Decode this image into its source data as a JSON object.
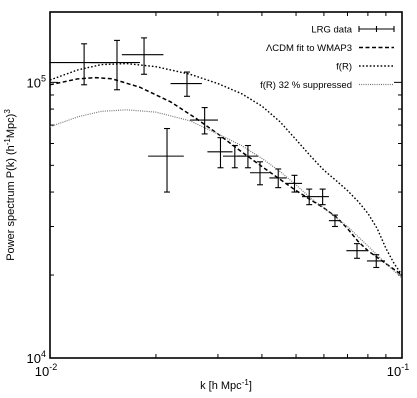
{
  "chart_data": {
    "type": "line",
    "xlabel": {
      "main": "k [h Mpc",
      "sup": "-1",
      "tail": "]"
    },
    "ylabel": {
      "main": "Power spectrum P(k) (h",
      "sup1": "-1",
      "mid": "Mpc)",
      "sup2": "3"
    },
    "x_scale": "log",
    "y_scale": "log",
    "xlim": [
      0.01,
      0.1
    ],
    "ylim": [
      10000,
      180000
    ],
    "x_ticks": [
      {
        "value": 0.01,
        "base": "10",
        "exp": "-2"
      },
      {
        "value": 0.1,
        "base": "10",
        "exp": "-1"
      }
    ],
    "y_ticks": [
      {
        "value": 10000,
        "base": "10",
        "exp": "4"
      },
      {
        "value": 100000,
        "base": "10",
        "exp": "5"
      }
    ],
    "legend": {
      "position": "top-right"
    },
    "series": [
      {
        "name": "LRG data",
        "kind": "errorbar",
        "color": "#000000",
        "points": [
          {
            "x": 0.0125,
            "y": 118000,
            "xerr": [
              0.0025,
              0.0025
            ],
            "yerr": [
              20000,
              20000
            ]
          },
          {
            "x": 0.0155,
            "y": 118000,
            "xerr": [
              0.0025,
              0.0025
            ],
            "yerr": [
              24000,
              24000
            ]
          },
          {
            "x": 0.0185,
            "y": 126000,
            "xerr": [
              0.0025,
              0.0025
            ],
            "yerr": [
              19000,
              19000
            ]
          },
          {
            "x": 0.0215,
            "y": 54000,
            "xerr": [
              0.0025,
              0.0025
            ],
            "yerr": [
              14000,
              14000
            ]
          },
          {
            "x": 0.0245,
            "y": 99000,
            "xerr": [
              0.0025,
              0.0025
            ],
            "yerr": [
              10000,
              10000
            ]
          },
          {
            "x": 0.0275,
            "y": 73000,
            "xerr": [
              0.0025,
              0.0025
            ],
            "yerr": [
              8000,
              8000
            ]
          },
          {
            "x": 0.0305,
            "y": 56000,
            "xerr": [
              0.0025,
              0.0025
            ],
            "yerr": [
              7000,
              7000
            ]
          },
          {
            "x": 0.0335,
            "y": 54000,
            "xerr": [
              0.0025,
              0.0025
            ],
            "yerr": [
              5000,
              5000
            ]
          },
          {
            "x": 0.0365,
            "y": 54000,
            "xerr": [
              0.0025,
              0.0025
            ],
            "yerr": [
              5000,
              5000
            ]
          },
          {
            "x": 0.0395,
            "y": 47000,
            "xerr": [
              0.0025,
              0.0025
            ],
            "yerr": [
              4500,
              4500
            ]
          },
          {
            "x": 0.0445,
            "y": 45000,
            "xerr": [
              0.0025,
              0.0025
            ],
            "yerr": [
              3500,
              3500
            ]
          },
          {
            "x": 0.0495,
            "y": 43000,
            "xerr": [
              0.0025,
              0.0025
            ],
            "yerr": [
              3000,
              3000
            ]
          },
          {
            "x": 0.0545,
            "y": 38500,
            "xerr": [
              0.0025,
              0.0025
            ],
            "yerr": [
              2500,
              2500
            ]
          },
          {
            "x": 0.0595,
            "y": 38500,
            "xerr": [
              0.0025,
              0.0025
            ],
            "yerr": [
              2500,
              2500
            ]
          },
          {
            "x": 0.0645,
            "y": 31500,
            "xerr": [
              0.0025,
              0.0025
            ],
            "yerr": [
              1500,
              1500
            ]
          },
          {
            "x": 0.0745,
            "y": 24500,
            "xerr": [
              0.005,
              0.005
            ],
            "yerr": [
              1500,
              1500
            ]
          },
          {
            "x": 0.0845,
            "y": 22500,
            "xerr": [
              0.005,
              0.005
            ],
            "yerr": [
              1200,
              1200
            ]
          }
        ]
      },
      {
        "name": "ΛCDM fit to WMAP3",
        "kind": "line",
        "dash": "dashed",
        "color": "#000000",
        "points": [
          {
            "x": 0.01,
            "y": 98000
          },
          {
            "x": 0.012,
            "y": 103000
          },
          {
            "x": 0.0135,
            "y": 104000
          },
          {
            "x": 0.015,
            "y": 103000
          },
          {
            "x": 0.018,
            "y": 96000
          },
          {
            "x": 0.022,
            "y": 85000
          },
          {
            "x": 0.026,
            "y": 74000
          },
          {
            "x": 0.03,
            "y": 65000
          },
          {
            "x": 0.035,
            "y": 56000
          },
          {
            "x": 0.04,
            "y": 49500
          },
          {
            "x": 0.045,
            "y": 44500
          },
          {
            "x": 0.05,
            "y": 40500
          },
          {
            "x": 0.055,
            "y": 37500
          },
          {
            "x": 0.06,
            "y": 35000
          },
          {
            "x": 0.065,
            "y": 32500
          },
          {
            "x": 0.07,
            "y": 29500
          },
          {
            "x": 0.075,
            "y": 26500
          },
          {
            "x": 0.08,
            "y": 24500
          },
          {
            "x": 0.09,
            "y": 22000
          },
          {
            "x": 0.1,
            "y": 20000
          }
        ]
      },
      {
        "name": "f(R)",
        "kind": "line",
        "dash": "dotted",
        "color": "#000000",
        "points": [
          {
            "x": 0.01,
            "y": 102000
          },
          {
            "x": 0.012,
            "y": 111000
          },
          {
            "x": 0.014,
            "y": 116000
          },
          {
            "x": 0.0165,
            "y": 117000
          },
          {
            "x": 0.02,
            "y": 114000
          },
          {
            "x": 0.025,
            "y": 107000
          },
          {
            "x": 0.03,
            "y": 99000
          },
          {
            "x": 0.035,
            "y": 91000
          },
          {
            "x": 0.04,
            "y": 82000
          },
          {
            "x": 0.045,
            "y": 72000
          },
          {
            "x": 0.05,
            "y": 62000
          },
          {
            "x": 0.055,
            "y": 54000
          },
          {
            "x": 0.06,
            "y": 48000
          },
          {
            "x": 0.065,
            "y": 44000
          },
          {
            "x": 0.07,
            "y": 40500
          },
          {
            "x": 0.075,
            "y": 37000
          },
          {
            "x": 0.08,
            "y": 33500
          },
          {
            "x": 0.085,
            "y": 29500
          },
          {
            "x": 0.09,
            "y": 25000
          },
          {
            "x": 0.095,
            "y": 22000
          },
          {
            "x": 0.1,
            "y": 20000
          }
        ]
      },
      {
        "name": "f(R) 32 % suppressed",
        "kind": "line",
        "dash": "fine-dotted",
        "color": "#777777",
        "points": [
          {
            "x": 0.01,
            "y": 69000
          },
          {
            "x": 0.012,
            "y": 75000
          },
          {
            "x": 0.014,
            "y": 78500
          },
          {
            "x": 0.0165,
            "y": 79500
          },
          {
            "x": 0.02,
            "y": 78000
          },
          {
            "x": 0.025,
            "y": 72500
          },
          {
            "x": 0.03,
            "y": 65000
          },
          {
            "x": 0.035,
            "y": 59000
          },
          {
            "x": 0.04,
            "y": 53000
          },
          {
            "x": 0.045,
            "y": 47500
          },
          {
            "x": 0.05,
            "y": 42500
          },
          {
            "x": 0.055,
            "y": 38000
          },
          {
            "x": 0.06,
            "y": 35000
          },
          {
            "x": 0.07,
            "y": 30000
          },
          {
            "x": 0.08,
            "y": 25500
          },
          {
            "x": 0.09,
            "y": 22000
          },
          {
            "x": 0.1,
            "y": 19500
          }
        ]
      }
    ]
  }
}
